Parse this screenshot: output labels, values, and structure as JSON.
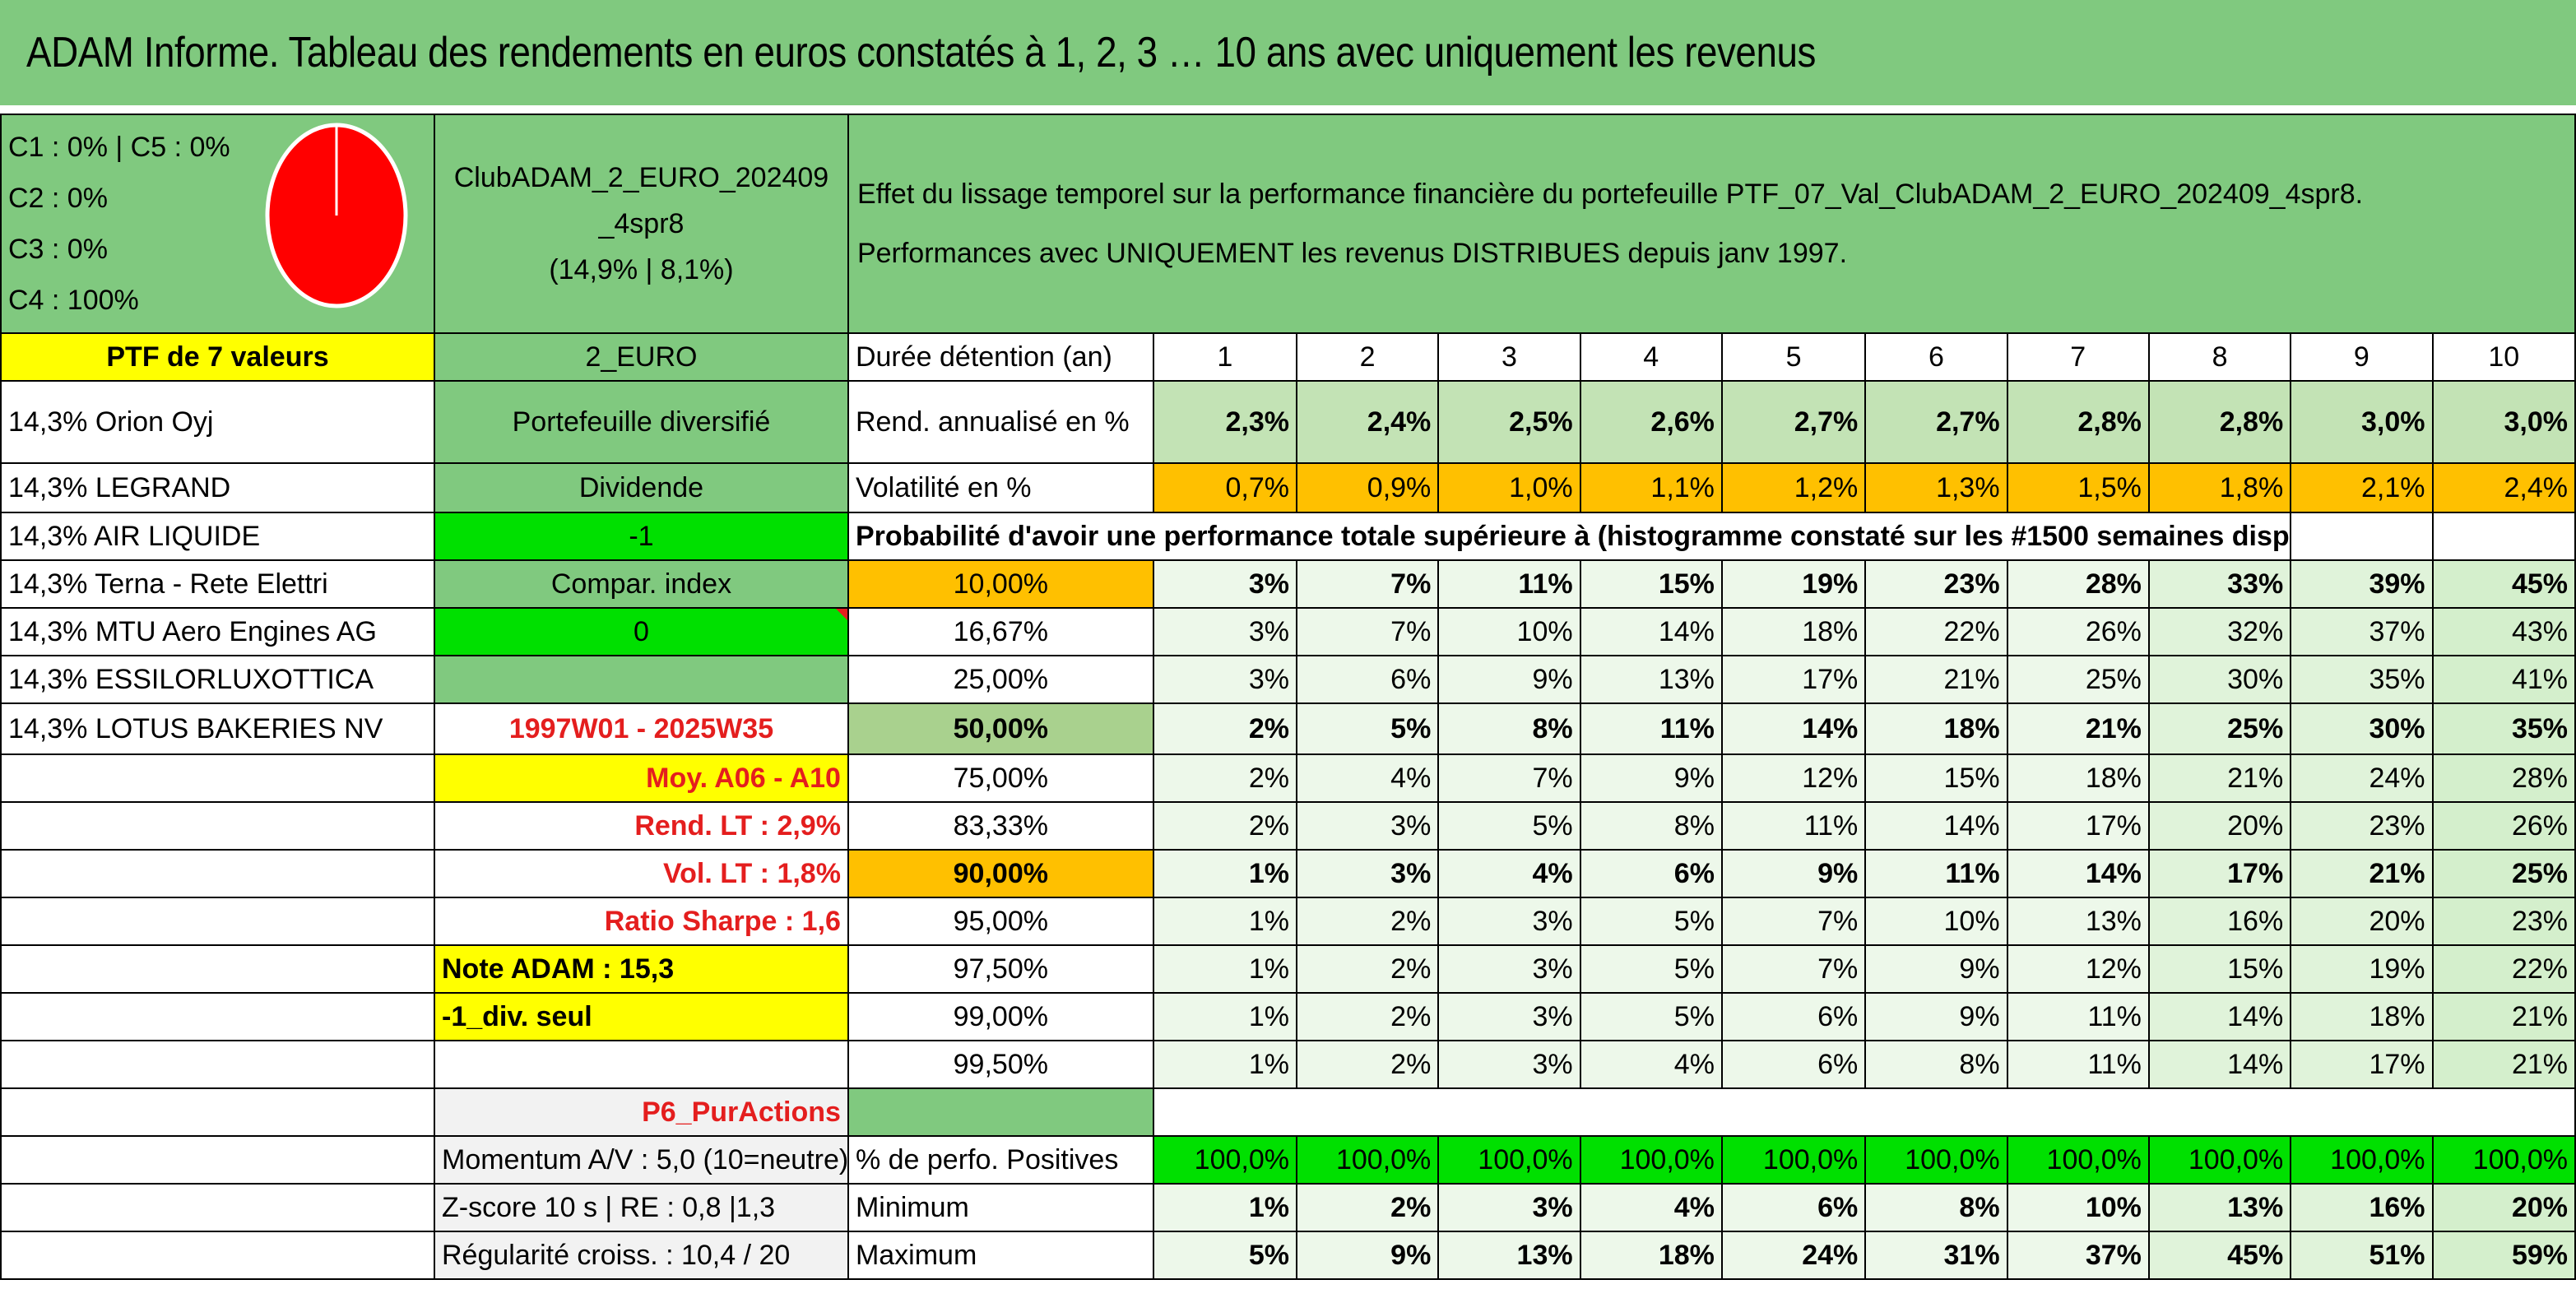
{
  "title": "ADAM Informe. Tableau des rendements en euros constatés à 1, 2, 3 … 10 ans avec uniquement les revenus",
  "colors": {
    "title_bg": "#80c97f",
    "red_text": "#e41e1e",
    "bright_green": "#00e000",
    "yellow": "#ffff00",
    "orange": "#ffc000"
  },
  "allocation": {
    "lines": [
      "C1 : 0% | C5 : 0%",
      "C2 : 0%",
      "C3 : 0%",
      "C4 : 100%"
    ],
    "pie_fraction_c4": 1.0,
    "pie_color": "#ff0000"
  },
  "portfolio": {
    "name_line1": "ClubADAM_2_EURO_202409",
    "name_line2": "_4spr8",
    "name_line3": "(14,9% | 8,1%)",
    "effect_line1": "Effet du lissage temporel sur la performance financière du portefeuille PTF_07_Val_ClubADAM_2_EURO_202409_4spr8.",
    "effect_line2": "Performances avec UNIQUEMENT les revenus DISTRIBUES depuis janv 1997."
  },
  "left": {
    "ptf_header": "PTF de 7 valeurs",
    "holdings": [
      "14,3% Orion Oyj",
      "14,3% LEGRAND",
      "14,3% AIR LIQUIDE",
      "14,3% Terna - Rete Elettri",
      "14,3% MTU Aero Engines AG",
      "14,3% ESSILORLUXOTTICA",
      "14,3% LOTUS BAKERIES NV"
    ]
  },
  "middle": {
    "currency": "2_EURO",
    "type": "Portefeuille diversifié",
    "dividende_label": "Dividende",
    "dividende_value": "-1",
    "compar_label": "Compar. index",
    "compar_value": "0",
    "period": "1997W01 - 2025W35",
    "moy": "Moy. A06 - A10",
    "rend_lt": "Rend. LT : 2,9%",
    "vol_lt": "Vol. LT : 1,8%",
    "sharpe": "Ratio Sharpe : 1,6",
    "note": "Note ADAM : 15,3",
    "div_seul": "-1_div. seul",
    "p6": "P6_PurActions",
    "momentum": "Momentum A/V : 5,0 (10=neutre)",
    "zscore": "Z-score 10 s | RE : 0,8 |1,3",
    "regularite": "Régularité croiss. : 10,4 / 20"
  },
  "table": {
    "duree_label": "Durée détention (an)",
    "years": [
      "1",
      "2",
      "3",
      "4",
      "5",
      "6",
      "7",
      "8",
      "9",
      "10"
    ],
    "rend_label": "Rend. annualisé en %",
    "rend": [
      "2,3%",
      "2,4%",
      "2,5%",
      "2,6%",
      "2,7%",
      "2,7%",
      "2,8%",
      "2,8%",
      "3,0%",
      "3,0%"
    ],
    "vol_label": "Volatilité en %",
    "vol": [
      "0,7%",
      "0,9%",
      "1,0%",
      "1,1%",
      "1,2%",
      "1,3%",
      "1,5%",
      "1,8%",
      "2,1%",
      "2,4%"
    ],
    "proba_label": "Probabilité d'avoir une performance totale supérieure à (histogramme constaté sur les #1500 semaines disponibles)",
    "proba_rows": [
      {
        "p": "10,00%",
        "v": [
          "3%",
          "7%",
          "11%",
          "15%",
          "19%",
          "23%",
          "28%",
          "33%",
          "39%",
          "45%"
        ]
      },
      {
        "p": "16,67%",
        "v": [
          "3%",
          "7%",
          "10%",
          "14%",
          "18%",
          "22%",
          "26%",
          "32%",
          "37%",
          "43%"
        ]
      },
      {
        "p": "25,00%",
        "v": [
          "3%",
          "6%",
          "9%",
          "13%",
          "17%",
          "21%",
          "25%",
          "30%",
          "35%",
          "41%"
        ]
      },
      {
        "p": "50,00%",
        "v": [
          "2%",
          "5%",
          "8%",
          "11%",
          "14%",
          "18%",
          "21%",
          "25%",
          "30%",
          "35%"
        ]
      },
      {
        "p": "75,00%",
        "v": [
          "2%",
          "4%",
          "7%",
          "9%",
          "12%",
          "15%",
          "18%",
          "21%",
          "24%",
          "28%"
        ]
      },
      {
        "p": "83,33%",
        "v": [
          "2%",
          "3%",
          "5%",
          "8%",
          "11%",
          "14%",
          "17%",
          "20%",
          "23%",
          "26%"
        ]
      },
      {
        "p": "90,00%",
        "v": [
          "1%",
          "3%",
          "4%",
          "6%",
          "9%",
          "11%",
          "14%",
          "17%",
          "21%",
          "25%"
        ]
      },
      {
        "p": "95,00%",
        "v": [
          "1%",
          "2%",
          "3%",
          "5%",
          "7%",
          "10%",
          "13%",
          "16%",
          "20%",
          "23%"
        ]
      },
      {
        "p": "97,50%",
        "v": [
          "1%",
          "2%",
          "3%",
          "5%",
          "7%",
          "9%",
          "12%",
          "15%",
          "19%",
          "22%"
        ]
      },
      {
        "p": "99,00%",
        "v": [
          "1%",
          "2%",
          "3%",
          "5%",
          "6%",
          "9%",
          "11%",
          "14%",
          "18%",
          "21%"
        ]
      },
      {
        "p": "99,50%",
        "v": [
          "1%",
          "2%",
          "3%",
          "4%",
          "6%",
          "8%",
          "11%",
          "14%",
          "17%",
          "21%"
        ]
      }
    ],
    "pos_label": "% de perfo. Positives",
    "pos": [
      "100,0%",
      "100,0%",
      "100,0%",
      "100,0%",
      "100,0%",
      "100,0%",
      "100,0%",
      "100,0%",
      "100,0%",
      "100,0%"
    ],
    "min_label": "Minimum",
    "min": [
      "1%",
      "2%",
      "3%",
      "4%",
      "6%",
      "8%",
      "10%",
      "13%",
      "16%",
      "20%"
    ],
    "max_label": "Maximum",
    "max": [
      "5%",
      "9%",
      "13%",
      "18%",
      "24%",
      "31%",
      "37%",
      "45%",
      "51%",
      "59%"
    ]
  }
}
